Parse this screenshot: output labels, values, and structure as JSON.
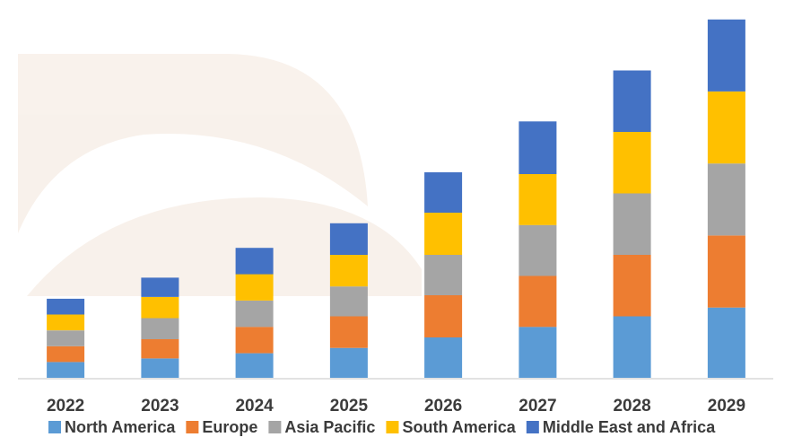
{
  "chart_data": {
    "type": "bar",
    "stacked": true,
    "title": "",
    "xlabel": "",
    "ylabel": "",
    "categories": [
      "2022",
      "2023",
      "2024",
      "2025",
      "2026",
      "2027",
      "2028",
      "2029"
    ],
    "series": [
      {
        "name": "North America",
        "color": "#5b9bd5",
        "values": [
          9,
          11,
          14,
          17,
          23,
          29,
          35,
          40
        ]
      },
      {
        "name": "Europe",
        "color": "#ed7d31",
        "values": [
          9,
          11,
          15,
          18,
          24,
          29,
          35,
          41
        ]
      },
      {
        "name": "Asia Pacific",
        "color": "#a5a5a5",
        "values": [
          9,
          12,
          15,
          17,
          23,
          29,
          35,
          41
        ]
      },
      {
        "name": "South America",
        "color": "#ffc000",
        "values": [
          9,
          12,
          15,
          18,
          24,
          29,
          35,
          41
        ]
      },
      {
        "name": "Middle East and Africa",
        "color": "#4472c4",
        "values": [
          9,
          11,
          15,
          18,
          23,
          30,
          35,
          41
        ]
      }
    ],
    "ylim": [
      0,
      210
    ],
    "grid": false,
    "legend_position": "bottom",
    "axis_line_color": "#d9d9d9"
  }
}
